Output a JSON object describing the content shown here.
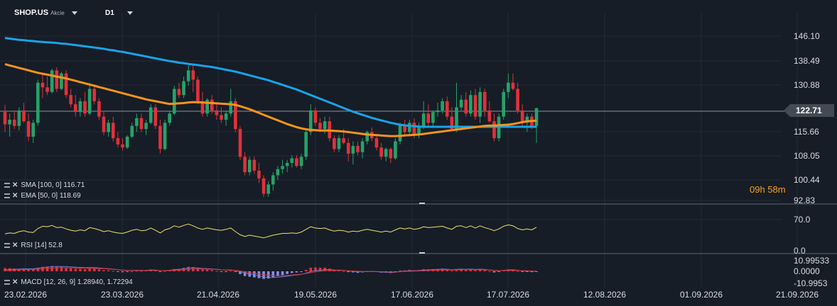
{
  "header": {
    "symbol": "SHOP.US",
    "symbol_type": "Akcie",
    "timeframe": "D1"
  },
  "price_axis": {
    "labels": [
      "146.10",
      "138.49",
      "130.88",
      "122.71",
      "115.66",
      "108.05",
      "100.44",
      "92.83"
    ],
    "current_price": "122.71"
  },
  "indicators": {
    "sma": "SMA [100, 0] 116.71",
    "ema": "EMA [50, 0] 118.69",
    "rsi": "RSI [14] 52.8",
    "macd": "MACD [12, 26, 9] 1.28940, 1.72294"
  },
  "rsi_axis": {
    "labels": [
      "70.0",
      "0.0"
    ]
  },
  "macd_axis": {
    "labels": [
      "10.99533",
      "0.0000",
      "-10.9953"
    ]
  },
  "timer": {
    "hours": "09",
    "h_unit": "h",
    "minutes": "58",
    "m_unit": "m"
  },
  "colors": {
    "background": "#161d26",
    "up": "#26a269",
    "down": "#e0313b",
    "sma": "#1aa3e8",
    "ema": "#f7941d",
    "rsi": "#f2e16b",
    "macd_line": "#6a7bd8",
    "signal_line": "#e0313b"
  },
  "chart_data": [
    {
      "type": "candlestick",
      "title": "SHOP.US",
      "x_labels": [
        "23.02.2026",
        "23.03.2026",
        "21.04.2026",
        "19.05.2026",
        "17.06.2026",
        "17.07.2026",
        "12.08.2026",
        "01.09.2026",
        "21.09.2026"
      ],
      "ylim": [
        92.83,
        146.1
      ],
      "grid": true,
      "candles": [
        [
          121.5,
          123.8,
          115.0,
          117.5
        ],
        [
          117.5,
          121.0,
          113.5,
          119.0
        ],
        [
          119.0,
          122.0,
          116.0,
          117.0
        ],
        [
          117.0,
          123.0,
          115.5,
          122.0
        ],
        [
          122.0,
          124.5,
          118.0,
          118.5
        ],
        [
          118.5,
          121.0,
          112.0,
          113.5
        ],
        [
          113.5,
          119.0,
          111.5,
          118.0
        ],
        [
          118.0,
          132.0,
          117.0,
          131.0
        ],
        [
          131.0,
          134.0,
          126.0,
          129.5
        ],
        [
          129.5,
          133.0,
          127.0,
          128.0
        ],
        [
          128.0,
          135.5,
          127.5,
          135.0
        ],
        [
          135.0,
          136.0,
          128.0,
          129.0
        ],
        [
          129.0,
          134.5,
          128.5,
          134.0
        ],
        [
          134.0,
          135.0,
          126.0,
          127.0
        ],
        [
          127.0,
          129.0,
          123.0,
          124.0
        ],
        [
          124.0,
          127.0,
          120.0,
          121.5
        ],
        [
          121.5,
          126.0,
          120.0,
          125.0
        ],
        [
          125.0,
          128.0,
          120.0,
          121.0
        ],
        [
          121.0,
          131.0,
          120.5,
          129.0
        ],
        [
          129.0,
          130.5,
          124.0,
          125.0
        ],
        [
          125.0,
          126.0,
          119.0,
          120.0
        ],
        [
          120.0,
          121.5,
          114.0,
          115.0
        ],
        [
          115.0,
          119.0,
          113.5,
          118.0
        ],
        [
          118.0,
          120.0,
          112.0,
          113.0
        ],
        [
          113.0,
          115.0,
          110.0,
          111.0
        ],
        [
          111.0,
          113.0,
          109.0,
          110.0
        ],
        [
          110.0,
          114.0,
          109.5,
          113.5
        ],
        [
          113.5,
          118.0,
          113.0,
          117.0
        ],
        [
          117.0,
          121.0,
          115.0,
          119.5
        ],
        [
          119.5,
          121.0,
          115.0,
          116.0
        ],
        [
          116.0,
          119.0,
          114.0,
          118.0
        ],
        [
          118.0,
          124.0,
          117.5,
          123.0
        ],
        [
          123.0,
          124.0,
          116.0,
          117.0
        ],
        [
          117.0,
          119.0,
          108.0,
          109.5
        ],
        [
          109.5,
          119.0,
          109.0,
          118.0
        ],
        [
          118.0,
          122.0,
          117.0,
          121.0
        ],
        [
          121.0,
          130.0,
          120.5,
          129.0
        ],
        [
          129.0,
          131.0,
          126.0,
          127.0
        ],
        [
          127.0,
          133.0,
          126.0,
          131.5
        ],
        [
          131.5,
          136.5,
          130.0,
          135.0
        ],
        [
          135.0,
          137.0,
          128.0,
          132.0
        ],
        [
          132.0,
          133.0,
          124.0,
          125.0
        ],
        [
          125.0,
          128.0,
          120.0,
          121.0
        ],
        [
          121.0,
          126.0,
          120.0,
          125.5
        ],
        [
          125.5,
          127.0,
          121.0,
          122.0
        ],
        [
          122.0,
          124.0,
          119.0,
          120.5
        ],
        [
          120.5,
          123.0,
          118.0,
          119.0
        ],
        [
          119.0,
          122.0,
          117.0,
          121.0
        ],
        [
          121.0,
          129.0,
          120.0,
          125.0
        ],
        [
          125.0,
          126.0,
          115.0,
          116.0
        ],
        [
          116.0,
          117.0,
          106.0,
          107.0
        ],
        [
          107.0,
          108.5,
          101.0,
          102.0
        ],
        [
          102.0,
          107.0,
          101.0,
          106.0
        ],
        [
          106.0,
          107.0,
          101.5,
          102.5
        ],
        [
          102.5,
          105.0,
          98.5,
          100.0
        ],
        [
          100.0,
          101.0,
          94.0,
          95.0
        ],
        [
          95.0,
          99.0,
          94.0,
          98.0
        ],
        [
          98.0,
          102.0,
          96.0,
          101.0
        ],
        [
          101.0,
          104.0,
          99.5,
          103.0
        ],
        [
          103.0,
          106.0,
          101.5,
          104.0
        ],
        [
          104.0,
          106.0,
          102.0,
          105.0
        ],
        [
          105.0,
          107.5,
          103.5,
          106.5
        ],
        [
          106.5,
          107.5,
          103.5,
          104.0
        ],
        [
          104.0,
          108.0,
          103.0,
          107.0
        ],
        [
          107.0,
          115.5,
          106.0,
          115.0
        ],
        [
          115.0,
          124.0,
          114.0,
          122.0
        ],
        [
          122.0,
          123.0,
          117.0,
          118.0
        ],
        [
          118.0,
          119.5,
          115.0,
          116.0
        ],
        [
          116.0,
          120.0,
          114.5,
          118.5
        ],
        [
          118.5,
          120.0,
          112.0,
          113.0
        ],
        [
          113.0,
          114.0,
          108.5,
          109.5
        ],
        [
          109.5,
          114.0,
          108.5,
          113.0
        ],
        [
          113.0,
          116.0,
          111.0,
          111.5
        ],
        [
          111.5,
          113.0,
          105.5,
          108.0
        ],
        [
          108.0,
          112.0,
          104.5,
          110.5
        ],
        [
          110.5,
          112.0,
          107.5,
          108.5
        ],
        [
          108.5,
          113.0,
          106.5,
          112.0
        ],
        [
          112.0,
          115.5,
          111.0,
          115.0
        ],
        [
          115.0,
          116.5,
          112.0,
          113.0
        ],
        [
          113.0,
          114.0,
          109.0,
          110.0
        ],
        [
          110.0,
          111.5,
          106.0,
          107.0
        ],
        [
          107.0,
          110.0,
          105.5,
          109.5
        ],
        [
          109.5,
          110.0,
          105.0,
          106.5
        ],
        [
          106.5,
          113.0,
          106.0,
          112.0
        ],
        [
          112.0,
          118.0,
          111.0,
          117.5
        ],
        [
          117.5,
          119.0,
          114.0,
          115.0
        ],
        [
          115.0,
          119.0,
          113.5,
          118.0
        ],
        [
          118.0,
          119.5,
          113.0,
          114.0
        ],
        [
          114.0,
          118.0,
          113.0,
          117.0
        ],
        [
          117.0,
          125.0,
          116.0,
          121.0
        ],
        [
          121.0,
          124.0,
          117.0,
          118.0
        ],
        [
          118.0,
          122.0,
          117.0,
          121.5
        ],
        [
          121.5,
          124.5,
          120.0,
          122.0
        ],
        [
          122.0,
          126.0,
          121.0,
          125.0
        ],
        [
          125.0,
          126.5,
          119.0,
          120.0
        ],
        [
          120.0,
          123.0,
          115.5,
          116.0
        ],
        [
          116.0,
          131.0,
          115.0,
          123.0
        ],
        [
          123.0,
          127.0,
          122.0,
          125.5
        ],
        [
          125.5,
          128.0,
          120.0,
          121.0
        ],
        [
          121.0,
          128.5,
          120.0,
          127.0
        ],
        [
          127.0,
          129.0,
          119.0,
          120.0
        ],
        [
          120.0,
          129.5,
          118.0,
          128.0
        ],
        [
          128.0,
          129.0,
          120.0,
          122.0
        ],
        [
          122.0,
          125.0,
          118.0,
          118.5
        ],
        [
          118.5,
          121.0,
          112.0,
          113.0
        ],
        [
          113.0,
          121.0,
          112.0,
          120.0
        ],
        [
          120.0,
          129.0,
          119.0,
          128.0
        ],
        [
          128.0,
          134.0,
          126.0,
          131.0
        ],
        [
          131.0,
          134.0,
          128.5,
          129.0
        ],
        [
          129.0,
          131.0,
          121.0,
          122.0
        ],
        [
          122.0,
          124.0,
          117.0,
          118.0
        ],
        [
          118.0,
          121.0,
          115.0,
          120.0
        ],
        [
          120.0,
          121.0,
          116.0,
          117.0
        ],
        [
          117.0,
          123.0,
          111.5,
          122.71
        ]
      ],
      "sma_100": [
        145.5,
        145.3,
        145.1,
        144.9,
        144.8,
        144.6,
        144.5,
        144.3,
        144.2,
        144.1,
        144.0,
        143.9,
        143.7,
        143.6,
        143.4,
        143.2,
        143.0,
        142.8,
        142.6,
        142.4,
        142.2,
        142.0,
        141.7,
        141.5,
        141.2,
        141.0,
        140.7,
        140.4,
        140.1,
        139.8,
        139.5,
        139.2,
        138.9,
        138.6,
        138.3,
        138.0,
        137.8,
        137.5,
        137.3,
        137.1,
        136.9,
        136.7,
        136.5,
        136.3,
        136.1,
        135.8,
        135.5,
        135.2,
        134.9,
        134.6,
        134.2,
        133.8,
        133.4,
        133.0,
        132.6,
        132.2,
        131.8,
        131.3,
        130.8,
        130.3,
        129.8,
        129.3,
        128.8,
        128.2,
        127.6,
        127.0,
        126.4,
        125.8,
        125.2,
        124.6,
        124.0,
        123.4,
        122.8,
        122.2,
        121.6,
        121.1,
        120.6,
        120.1,
        119.6,
        119.2,
        118.8,
        118.4,
        118.0,
        117.7,
        117.4,
        117.2,
        117.0,
        116.9,
        116.8,
        116.7,
        116.7,
        116.7,
        116.7,
        116.7,
        116.7,
        116.7,
        116.7,
        116.7,
        116.7,
        116.7,
        116.7,
        116.7,
        116.7,
        116.7,
        116.7,
        116.7,
        116.7,
        116.7,
        116.7,
        116.7,
        116.7,
        116.7,
        116.7,
        116.71
      ],
      "ema_50": [
        137.0,
        136.6,
        136.2,
        135.8,
        135.4,
        135.0,
        134.6,
        134.2,
        133.9,
        133.6,
        133.3,
        133.0,
        132.7,
        132.4,
        132.0,
        131.6,
        131.2,
        130.8,
        130.4,
        130.0,
        129.6,
        129.2,
        128.8,
        128.4,
        128.0,
        127.6,
        127.2,
        126.8,
        126.4,
        126.0,
        125.6,
        125.3,
        125.0,
        124.7,
        124.4,
        124.1,
        124.2,
        124.3,
        124.4,
        124.6,
        124.7,
        124.7,
        124.6,
        124.5,
        124.4,
        124.3,
        124.2,
        124.1,
        124.0,
        123.8,
        123.4,
        122.9,
        122.4,
        121.8,
        121.2,
        120.6,
        120.0,
        119.4,
        118.8,
        118.2,
        117.6,
        117.1,
        116.6,
        116.2,
        115.9,
        115.7,
        115.6,
        115.5,
        115.5,
        115.5,
        115.4,
        115.3,
        115.2,
        115.0,
        114.8,
        114.6,
        114.4,
        114.2,
        114.1,
        114.0,
        113.9,
        113.8,
        113.7,
        113.7,
        113.8,
        113.9,
        114.0,
        114.1,
        114.2,
        114.4,
        114.6,
        114.8,
        115.0,
        115.2,
        115.4,
        115.6,
        115.8,
        116.0,
        116.2,
        116.4,
        116.6,
        116.8,
        117.0,
        117.1,
        117.1,
        117.2,
        117.3,
        117.4,
        117.6,
        117.9,
        118.2,
        118.5,
        118.6,
        118.69
      ],
      "rsi_14": [
        38,
        40,
        39,
        43,
        45,
        42,
        41,
        50,
        55,
        54,
        57,
        52,
        53,
        49,
        46,
        44,
        47,
        45,
        52,
        50,
        47,
        43,
        45,
        42,
        40,
        39,
        42,
        46,
        48,
        45,
        46,
        51,
        46,
        40,
        47,
        50,
        56,
        53,
        57,
        60,
        56,
        51,
        48,
        51,
        49,
        47,
        46,
        48,
        51,
        43,
        36,
        32,
        35,
        33,
        31,
        29,
        32,
        35,
        37,
        39,
        39,
        40,
        39,
        42,
        48,
        54,
        51,
        50,
        51,
        47,
        44,
        46,
        45,
        42,
        44,
        43,
        46,
        48,
        46,
        44,
        42,
        44,
        42,
        47,
        51,
        49,
        51,
        48,
        50,
        54,
        52,
        53,
        54,
        55,
        51,
        48,
        55,
        56,
        52,
        56,
        51,
        56,
        52,
        49,
        45,
        49,
        55,
        58,
        56,
        50,
        47,
        49,
        47,
        52.8
      ],
      "rsi_axis": [
        0,
        100
      ],
      "macd_hist": [
        2.3,
        2.2,
        2.0,
        1.9,
        2.1,
        1.8,
        1.7,
        2.5,
        3.2,
        3.4,
        3.8,
        3.3,
        3.2,
        2.7,
        2.2,
        1.8,
        1.7,
        1.4,
        2.0,
        1.9,
        1.4,
        0.8,
        0.7,
        0.3,
        -0.2,
        -0.6,
        -0.5,
        0.0,
        0.4,
        0.3,
        0.5,
        1.2,
        0.9,
        -0.1,
        0.2,
        0.6,
        1.6,
        1.8,
        2.5,
        3.2,
        3.0,
        2.2,
        1.3,
        1.2,
        0.8,
        0.3,
        -0.1,
        -0.1,
        0.4,
        -0.5,
        -2.0,
        -3.4,
        -3.9,
        -4.4,
        -4.9,
        -5.5,
        -5.2,
        -4.5,
        -3.6,
        -2.7,
        -1.9,
        -1.2,
        -0.8,
        -0.2,
        1.0,
        2.6,
        2.8,
        2.6,
        2.6,
        1.9,
        0.9,
        0.6,
        0.1,
        -0.6,
        -0.8,
        -1.1,
        -0.8,
        -0.2,
        -0.1,
        -0.4,
        -0.9,
        -0.9,
        -1.2,
        -0.5,
        0.6,
        0.7,
        1.1,
        0.7,
        0.9,
        1.5,
        1.4,
        1.6,
        1.7,
        1.9,
        1.3,
        0.6,
        1.3,
        1.5,
        1.0,
        1.4,
        0.8,
        1.3,
        0.8,
        0.2,
        -0.8,
        -0.5,
        0.5,
        1.3,
        1.2,
        0.2,
        -0.5,
        -0.3,
        -0.6,
        -0.43
      ],
      "macd_axis": [
        -10.9953,
        10.99533
      ]
    }
  ]
}
